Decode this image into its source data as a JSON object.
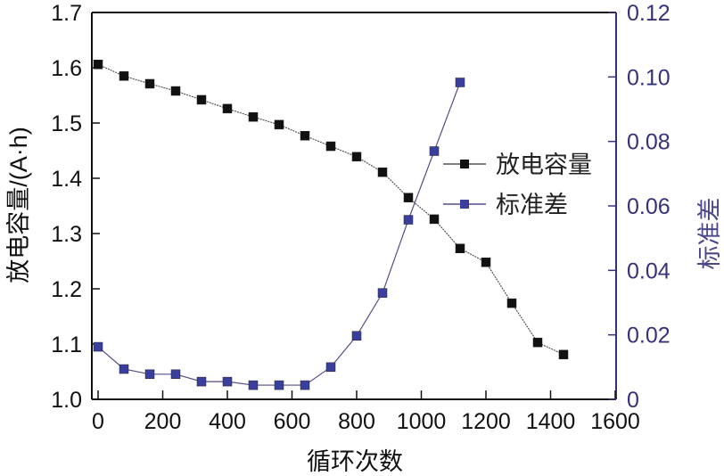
{
  "chart_data": {
    "type": "line",
    "title": "",
    "xlabel": "循环次数",
    "ylabel": "放电容量/(A·h)",
    "y2label": "标准差",
    "xlim": [
      0,
      1600
    ],
    "ylim": [
      1.0,
      1.7
    ],
    "y2lim": [
      0,
      0.12
    ],
    "xticks": [
      "0",
      "200",
      "400",
      "600",
      "800",
      "1000",
      "1200",
      "1400",
      "1600"
    ],
    "yticks": [
      "1.0",
      "1.1",
      "1.2",
      "1.3",
      "1.4",
      "1.5",
      "1.6",
      "1.7"
    ],
    "y2ticks": [
      "0",
      "0.02",
      "0.04",
      "0.06",
      "0.08",
      "0.10",
      "0.12"
    ],
    "legend_position": "center-right",
    "series": [
      {
        "name": "放电容量",
        "axis": "left",
        "color": "#111111",
        "line_color": "#555555",
        "x": [
          0,
          80,
          160,
          240,
          320,
          400,
          480,
          560,
          640,
          720,
          800,
          880,
          960,
          1040,
          1120,
          1200,
          1280,
          1360,
          1440
        ],
        "values": [
          1.606,
          1.585,
          1.571,
          1.558,
          1.542,
          1.526,
          1.511,
          1.497,
          1.477,
          1.458,
          1.439,
          1.411,
          1.365,
          1.326,
          1.273,
          1.248,
          1.174,
          1.103,
          1.081
        ]
      },
      {
        "name": "标准差",
        "axis": "right",
        "color": "#3a3f9e",
        "line_color": "#5a4a8a",
        "x": [
          0,
          80,
          160,
          240,
          320,
          400,
          480,
          560,
          640,
          720,
          800,
          880,
          960,
          1040,
          1120
        ],
        "values": [
          0.0163,
          0.0094,
          0.0078,
          0.0078,
          0.0055,
          0.0055,
          0.0044,
          0.0044,
          0.0044,
          0.01,
          0.0197,
          0.033,
          0.0557,
          0.077,
          0.0983
        ]
      }
    ],
    "axis_colors": {
      "left": "#111111",
      "right": "#33337a"
    }
  }
}
